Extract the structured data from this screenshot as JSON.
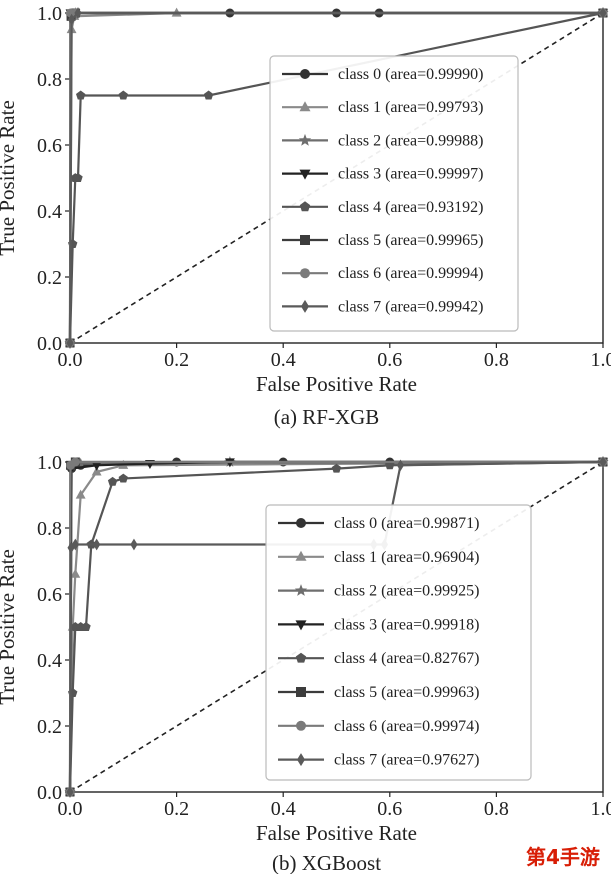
{
  "chart_data": [
    {
      "type": "line",
      "caption": "(a) RF-XGB",
      "xlabel": "False Positive Rate",
      "ylabel": "True Positive Rate",
      "xlim": [
        0,
        1
      ],
      "ylim": [
        0,
        1
      ],
      "x_ticks": [
        "0.0",
        "0.2",
        "0.4",
        "0.6",
        "0.8",
        "1.0"
      ],
      "y_ticks": [
        "0.0",
        "0.2",
        "0.4",
        "0.6",
        "0.8",
        "1.0"
      ],
      "grid": false,
      "legend_position": "right",
      "diagonal": "dashed",
      "series": [
        {
          "name": "class 0 (area=0.99990)",
          "marker": "circle",
          "x": [
            0,
            0.002,
            0.01,
            0.3,
            0.5,
            0.58,
            1.0
          ],
          "y": [
            0,
            0.99,
            1.0,
            1.0,
            1.0,
            1.0,
            1.0
          ]
        },
        {
          "name": "class 1 (area=0.99793)",
          "marker": "triangle-up",
          "x": [
            0,
            0.003,
            0.008,
            0.2,
            1.0
          ],
          "y": [
            0,
            0.95,
            0.99,
            1.0,
            1.0
          ]
        },
        {
          "name": "class 2 (area=0.99988)",
          "marker": "star",
          "x": [
            0,
            0.002,
            0.01,
            1.0
          ],
          "y": [
            0,
            0.99,
            1.0,
            1.0
          ]
        },
        {
          "name": "class 3 (area=0.99997)",
          "marker": "triangle-down",
          "x": [
            0,
            0.001,
            0.01,
            1.0
          ],
          "y": [
            0,
            1.0,
            1.0,
            1.0
          ]
        },
        {
          "name": "class 4 (area=0.93192)",
          "marker": "pentagon",
          "x": [
            0,
            0.005,
            0.01,
            0.015,
            0.02,
            0.1,
            0.26,
            1.0
          ],
          "y": [
            0,
            0.3,
            0.5,
            0.5,
            0.75,
            0.75,
            0.75,
            1.0
          ]
        },
        {
          "name": "class 5 (area=0.99965)",
          "marker": "square",
          "x": [
            0,
            0.002,
            0.01,
            1.0
          ],
          "y": [
            0,
            0.99,
            1.0,
            1.0
          ]
        },
        {
          "name": "class 6 (area=0.99994)",
          "marker": "circle",
          "x": [
            0,
            0.001,
            0.01,
            1.0
          ],
          "y": [
            0,
            1.0,
            1.0,
            1.0
          ]
        },
        {
          "name": "class 7 (area=0.99942)",
          "marker": "diamond",
          "x": [
            0,
            0.003,
            0.015,
            1.0
          ],
          "y": [
            0,
            0.98,
            1.0,
            1.0
          ]
        }
      ]
    },
    {
      "type": "line",
      "caption": "(b) XGBoost",
      "xlabel": "False Positive Rate",
      "ylabel": "True Positive Rate",
      "xlim": [
        0,
        1
      ],
      "ylim": [
        0,
        1
      ],
      "x_ticks": [
        "0.0",
        "0.2",
        "0.4",
        "0.6",
        "0.8",
        "1.0"
      ],
      "y_ticks": [
        "0.0",
        "0.2",
        "0.4",
        "0.6",
        "0.8",
        "1.0"
      ],
      "grid": false,
      "legend_position": "right",
      "diagonal": "dashed",
      "series": [
        {
          "name": "class 0 (area=0.99871)",
          "marker": "circle",
          "x": [
            0,
            0.003,
            0.02,
            0.2,
            0.4,
            0.6,
            1.0
          ],
          "y": [
            0,
            0.98,
            0.99,
            1.0,
            1.0,
            1.0,
            1.0
          ]
        },
        {
          "name": "class 1 (area=0.96904)",
          "marker": "triangle-up",
          "x": [
            0,
            0.005,
            0.01,
            0.02,
            0.05,
            0.1,
            1.0
          ],
          "y": [
            0,
            0.5,
            0.66,
            0.9,
            0.97,
            0.99,
            1.0
          ]
        },
        {
          "name": "class 2 (area=0.99925)",
          "marker": "star",
          "x": [
            0,
            0.003,
            0.02,
            0.3,
            1.0
          ],
          "y": [
            0,
            0.99,
            0.995,
            1.0,
            1.0
          ]
        },
        {
          "name": "class 3 (area=0.99918)",
          "marker": "triangle-down",
          "x": [
            0,
            0.002,
            0.05,
            0.15,
            0.3,
            1.0
          ],
          "y": [
            0,
            0.98,
            0.99,
            0.995,
            1.0,
            1.0
          ]
        },
        {
          "name": "class 4 (area=0.82767)",
          "marker": "pentagon",
          "x": [
            0,
            0.005,
            0.01,
            0.02,
            0.03,
            0.04,
            0.08,
            0.1,
            0.5,
            0.6,
            1.0
          ],
          "y": [
            0,
            0.3,
            0.5,
            0.5,
            0.5,
            0.75,
            0.94,
            0.95,
            0.98,
            0.99,
            1.0
          ]
        },
        {
          "name": "class 5 (area=0.99963)",
          "marker": "square",
          "x": [
            0,
            0.001,
            0.01,
            1.0
          ],
          "y": [
            0,
            0.99,
            1.0,
            1.0
          ]
        },
        {
          "name": "class 6 (area=0.99974)",
          "marker": "circle",
          "x": [
            0,
            0.001,
            0.01,
            1.0
          ],
          "y": [
            0,
            0.99,
            1.0,
            1.0
          ]
        },
        {
          "name": "class 7 (area=0.97627)",
          "marker": "diamond",
          "x": [
            0,
            0.002,
            0.01,
            0.05,
            0.12,
            0.57,
            0.59,
            0.62,
            1.0
          ],
          "y": [
            0,
            0.74,
            0.75,
            0.75,
            0.75,
            0.75,
            0.75,
            0.99,
            1.0
          ]
        }
      ]
    }
  ],
  "watermark": "第4手游"
}
